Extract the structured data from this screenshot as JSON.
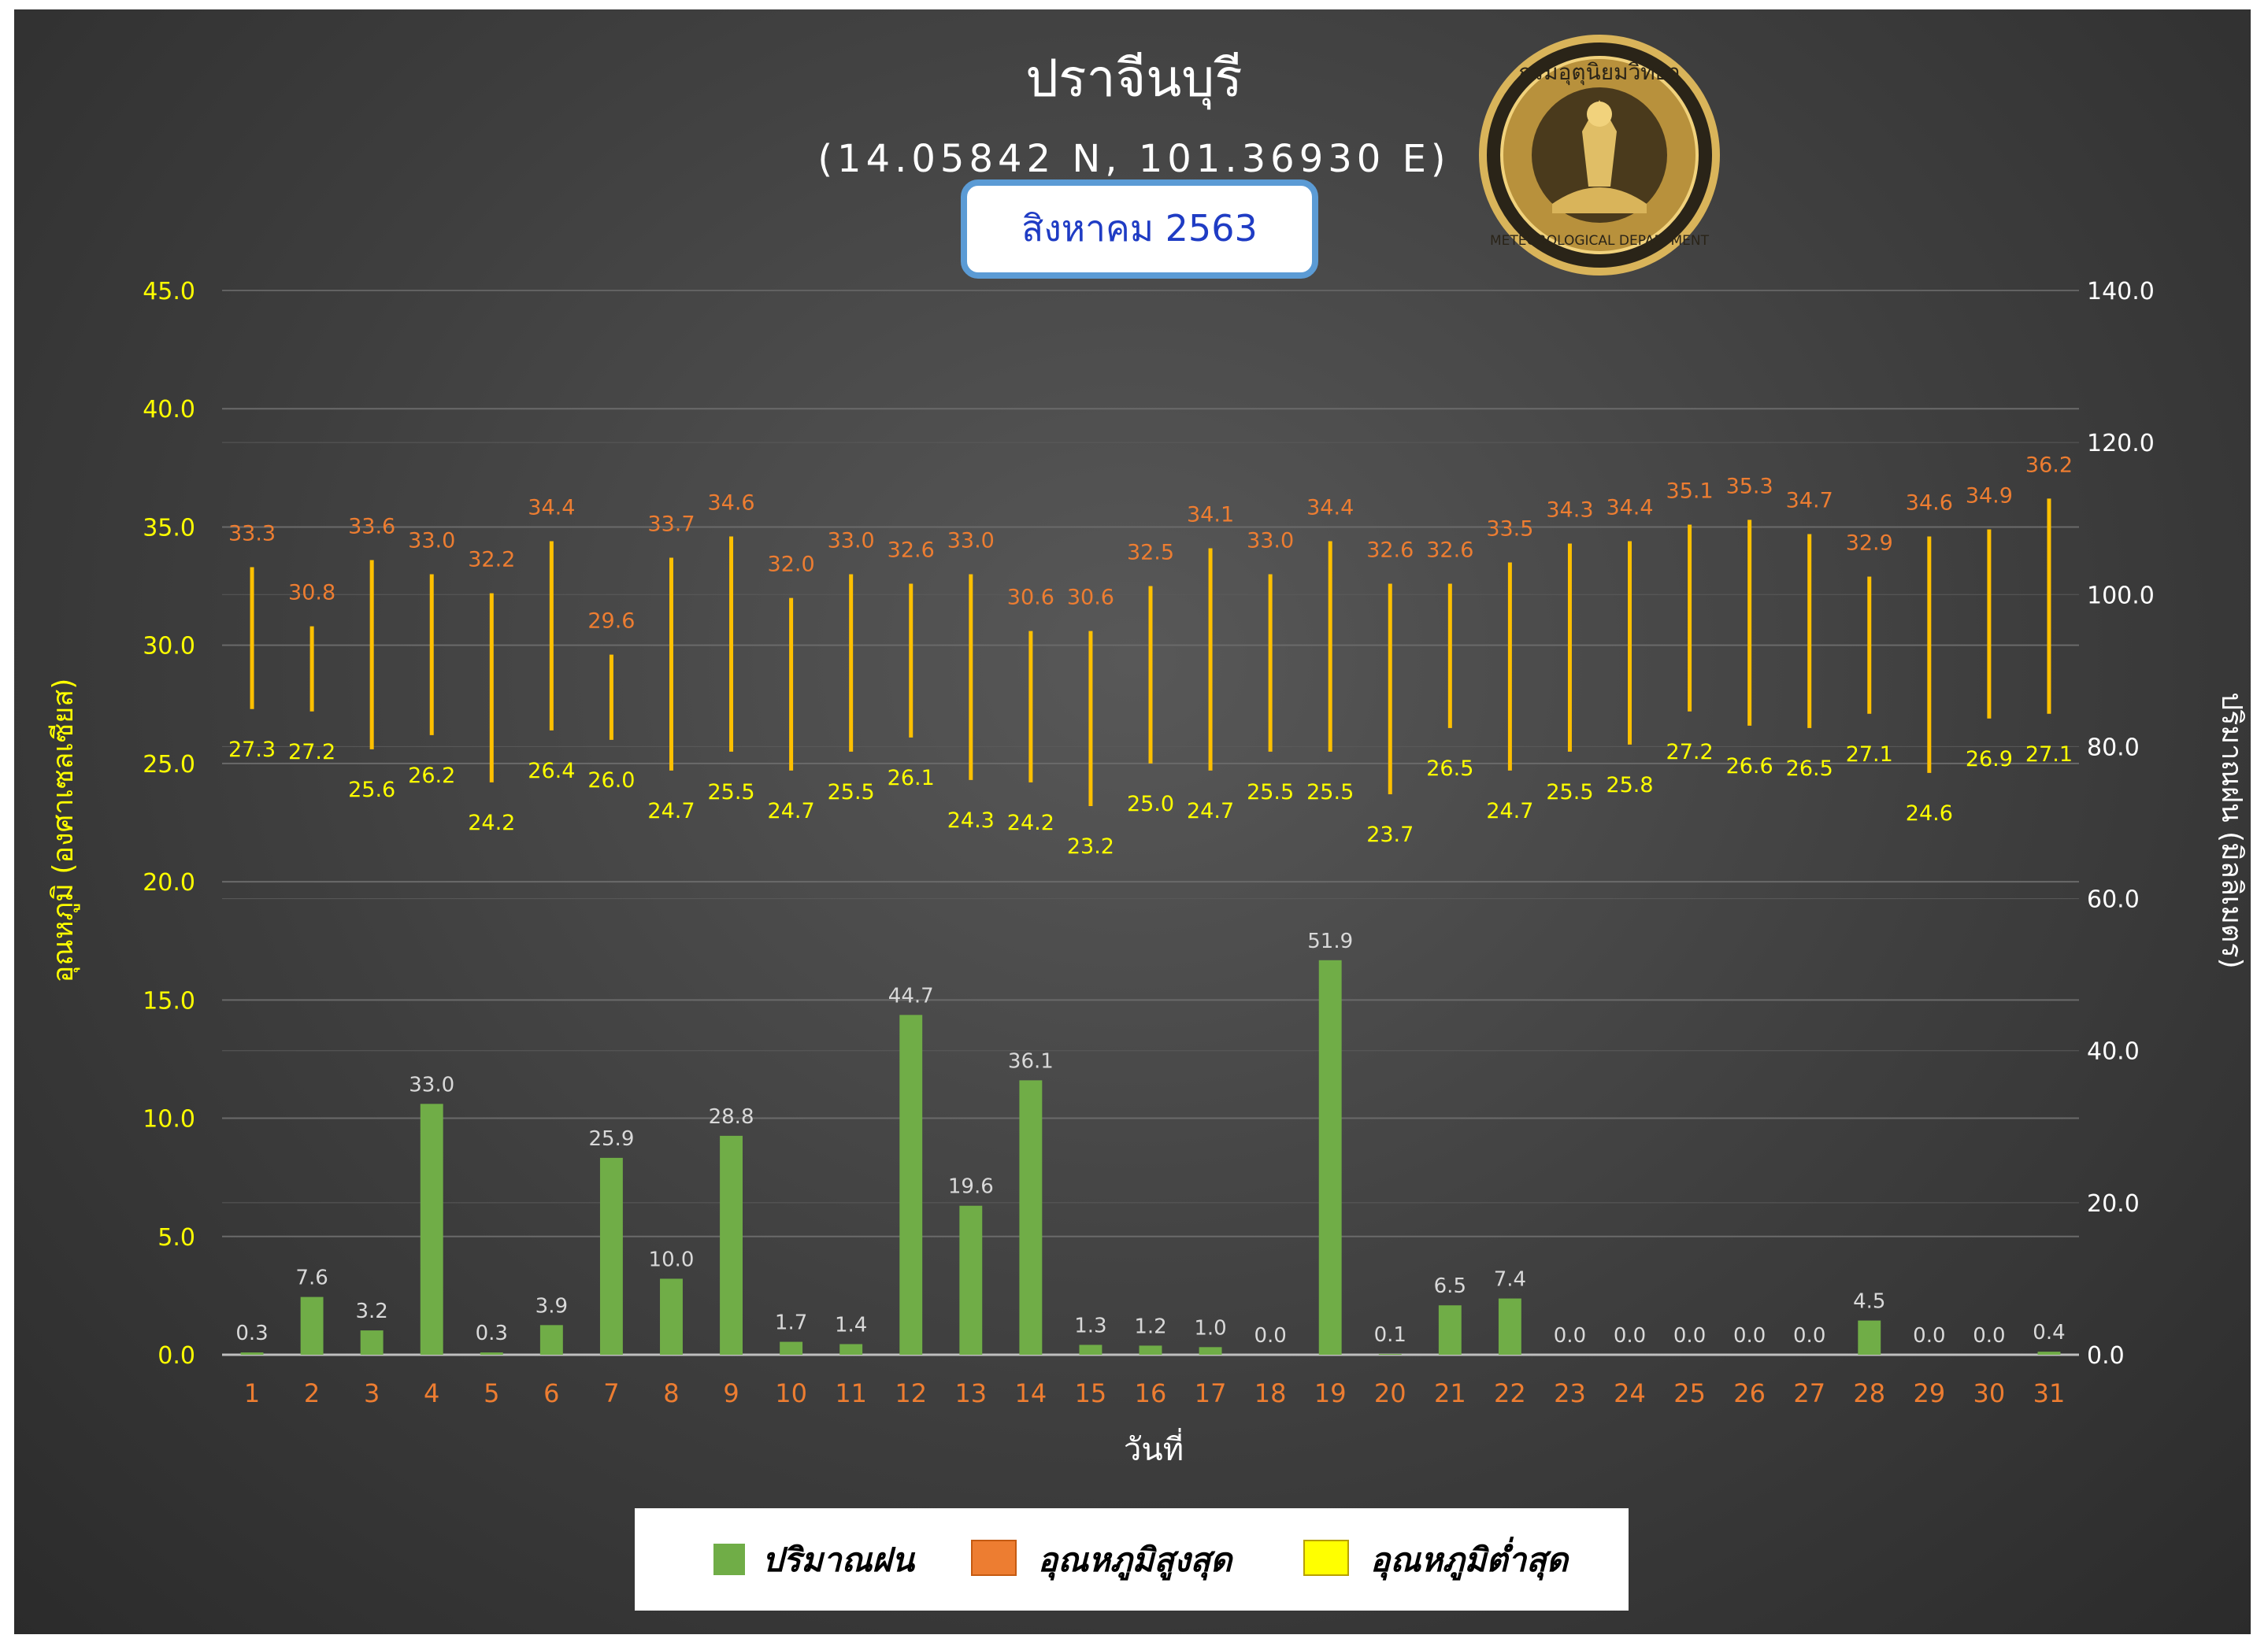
{
  "chart_data": {
    "type": "bar",
    "title": "ปราจีนบุรี",
    "subtitle": "(14.05842 N, 101.36930 E)",
    "month_label": "สิงหาคม 2563",
    "xlabel": "วันที่",
    "ylabel_left": "อุณหภูมิ (องศาเซลเซียส)",
    "ylabel_right": "ปริมาณฝน (มิลลิเมตร)",
    "categories": [
      "1",
      "2",
      "3",
      "4",
      "5",
      "6",
      "7",
      "8",
      "9",
      "10",
      "11",
      "12",
      "13",
      "14",
      "15",
      "16",
      "17",
      "18",
      "19",
      "20",
      "21",
      "22",
      "23",
      "24",
      "25",
      "26",
      "27",
      "28",
      "29",
      "30",
      "31"
    ],
    "ylim_left": [
      0,
      45
    ],
    "ylim_right": [
      0,
      140
    ],
    "yticks_left": [
      "0.0",
      "5.0",
      "10.0",
      "15.0",
      "20.0",
      "25.0",
      "30.0",
      "35.0",
      "40.0",
      "45.0"
    ],
    "yticks_right": [
      "0.0",
      "20.0",
      "40.0",
      "60.0",
      "80.0",
      "100.0",
      "120.0",
      "140.0"
    ],
    "grid": true,
    "legend_position": "bottom",
    "series": [
      {
        "name": "ปริมาณฝน",
        "axis": "right",
        "color": "#70ad47",
        "labels": [
          "0.3",
          "7.6",
          "3.2",
          "33.0",
          "0.3",
          "3.9",
          "25.9",
          "10.0",
          "28.8",
          "1.7",
          "1.4",
          "44.7",
          "19.6",
          "36.1",
          "1.3",
          "1.2",
          "1.0",
          "0.0",
          "51.9",
          "0.1",
          "6.5",
          "7.4",
          "0.0",
          "0.0",
          "0.0",
          "0.0",
          "0.0",
          "4.5",
          "0.0",
          "0.0",
          "0.4"
        ]
      },
      {
        "name": "อุณหภูมิสูงสุด",
        "axis": "left",
        "color": "#ed7d31",
        "labels": [
          "33.3",
          "30.8",
          "33.6",
          "33.0",
          "32.2",
          "34.4",
          "29.6",
          "33.7",
          "34.6",
          "32.0",
          "33.0",
          "32.6",
          "33.0",
          "30.6",
          "30.6",
          "32.5",
          "34.1",
          "33.0",
          "34.4",
          "32.6",
          "32.6",
          "33.5",
          "34.3",
          "34.4",
          "35.1",
          "35.3",
          "34.7",
          "32.9",
          "34.6",
          "34.9",
          "36.2"
        ]
      },
      {
        "name": "อุณหภูมิต่ำสุด",
        "axis": "left",
        "color": "#ffff00",
        "labels": [
          "27.3",
          "27.2",
          "25.6",
          "26.2",
          "24.2",
          "26.4",
          "26.0",
          "24.7",
          "25.5",
          "24.7",
          "25.5",
          "26.1",
          "24.3",
          "24.2",
          "23.2",
          "25.0",
          "24.7",
          "25.5",
          "25.5",
          "23.7",
          "26.5",
          "24.7",
          "25.5",
          "25.8",
          "27.2",
          "26.6",
          "26.5",
          "27.1",
          "24.6",
          "26.9",
          "27.1"
        ]
      }
    ],
    "range_color": "#ffc000",
    "axis_text_colors": {
      "left": "#ffff00",
      "right": "#ffffff",
      "x": "#ed7d31",
      "bar_labels": "#d9d9d9"
    }
  },
  "seal": {
    "top_text": "กรมอุตุนิยมวิทยา",
    "bottom_text": "METEOROLOGICAL DEPARTMENT"
  }
}
